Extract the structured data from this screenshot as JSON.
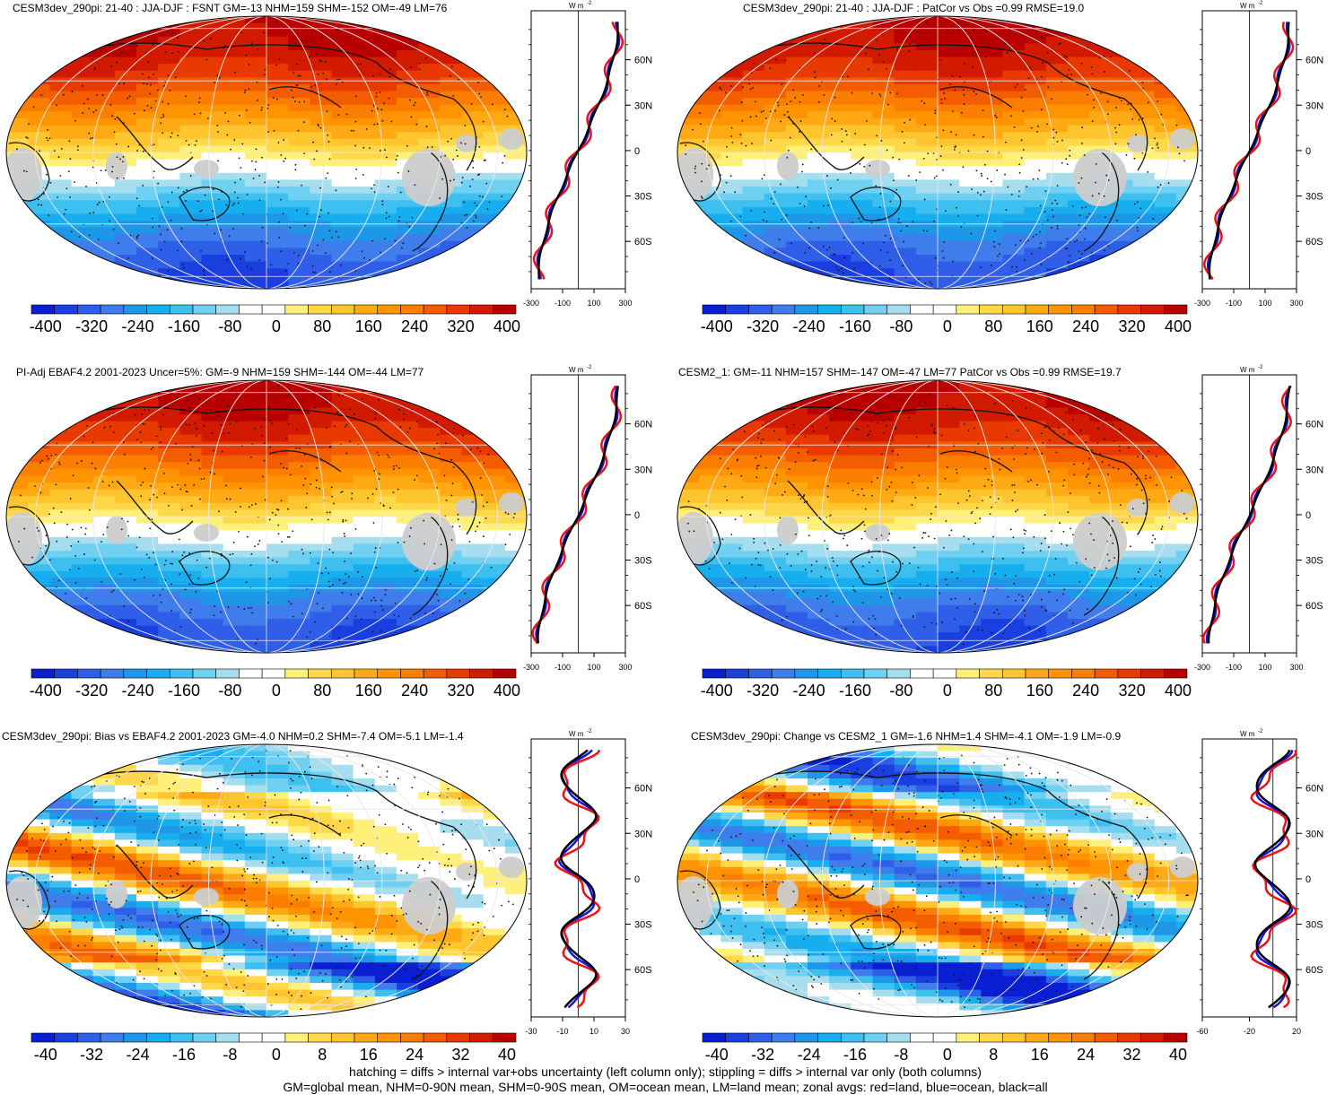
{
  "panels": [
    {
      "title": "CESM3dev_290pi: 21-40 : JJA-DJF : FSNT GM=-13 NHM=159 SHM=-152 OM=-49 LM=76",
      "kind": "abs"
    },
    {
      "title": "CESM3dev_290pi: 21-40 : JJA-DJF : PatCor vs Obs =0.99 RMSE=19.0",
      "kind": "abs"
    },
    {
      "title": "PI-Adj EBAF4.2 2001-2023 Uncer=5%: GM=-9 NHM=159 SHM=-144 OM=-44 LM=77",
      "kind": "abs"
    },
    {
      "title": "CESM2_1: GM=-11 NHM=157 SHM=-147 OM=-47 LM=77 PatCor vs Obs =0.99 RMSE=19.7",
      "kind": "abs"
    },
    {
      "title": "CESM3dev_290pi: Bias vs EBAF4.2 2001-2023 GM=-4.0 NHM=0.2 SHM=-7.4 OM=-5.1 LM=-1.4",
      "kind": "diff"
    },
    {
      "title": "CESM3dev_290pi: Change vs CESM2_1 GM=-1.6 NHM=1.4 SHM=-4.1 OM=-1.9 LM=-0.9",
      "kind": "diff2"
    }
  ],
  "units_label": "W m",
  "units_exp": "-2",
  "lat_ticks": [
    "60N",
    "30N",
    "0",
    "30S",
    "60S"
  ],
  "cbar_labels_abs": [
    "-400",
    "-320",
    "-240",
    "-160",
    "-80",
    "0",
    "80",
    "160",
    "240",
    "320",
    "400"
  ],
  "cbar_labels_diff": [
    "-40",
    "-32",
    "-24",
    "-16",
    "-8",
    "0",
    "8",
    "16",
    "24",
    "32",
    "40"
  ],
  "zonal_x_abs": [
    "-300",
    "-100",
    "100",
    "300"
  ],
  "zonal_x_diff": [
    "-30",
    "-10",
    "10",
    "30"
  ],
  "zonal_x_diff2": [
    "-60",
    "-20",
    "20"
  ],
  "colors": {
    "palette": [
      "#0a1ed2",
      "#1a3fe0",
      "#2f5ee8",
      "#3f7cec",
      "#1f97e8",
      "#17aef0",
      "#3dc0f0",
      "#6fd0f2",
      "#a6def0",
      "#ffffff",
      "#ffffff",
      "#fff07a",
      "#ffd84a",
      "#ffc52e",
      "#ffaa14",
      "#ff9400",
      "#fb7e00",
      "#f45c00",
      "#e83a00",
      "#d21a00",
      "#b80000"
    ],
    "land": "#cccccc",
    "line_land": "#ee1111",
    "line_ocean": "#1515dd",
    "line_all": "#000000"
  },
  "footer": [
    "hatching = diffs > internal var+obs uncertainty (left column only); stippling = diffs > internal var only (both columns)",
    "GM=global mean, NHM=0-90N mean, SHM=0-90S mean, OM=ocean mean, LM=land mean; zonal avgs: red=land, blue=ocean, black=all"
  ]
}
